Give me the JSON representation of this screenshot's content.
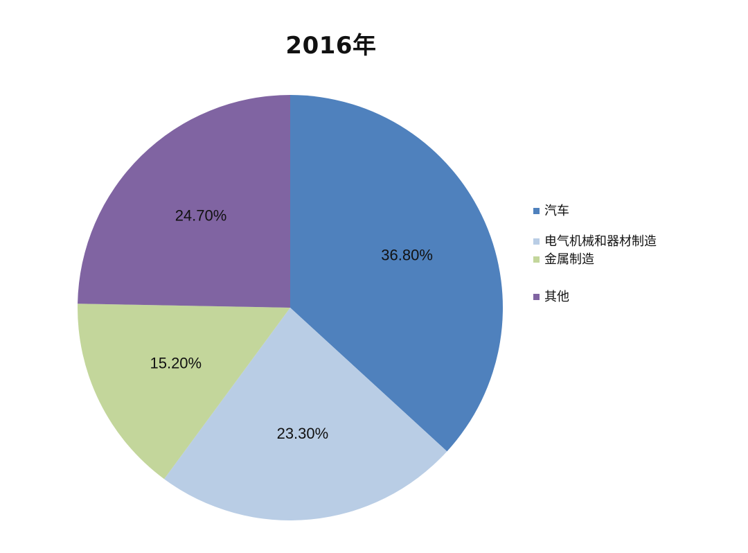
{
  "chart_data": {
    "type": "pie",
    "title": "2016年",
    "categories": [
      "汽车",
      "电气机械和器材制造",
      "金属制造",
      "其他"
    ],
    "values": [
      36.8,
      23.3,
      15.2,
      24.7
    ],
    "value_labels": [
      "36.80%",
      "23.30%",
      "15.20%",
      "24.70%"
    ],
    "colors": [
      "#4F81BD",
      "#B9CDE5",
      "#C3D69B",
      "#8064A2"
    ],
    "start_angle": "12 o'clock",
    "direction": "clockwise",
    "legend_position": "right"
  }
}
